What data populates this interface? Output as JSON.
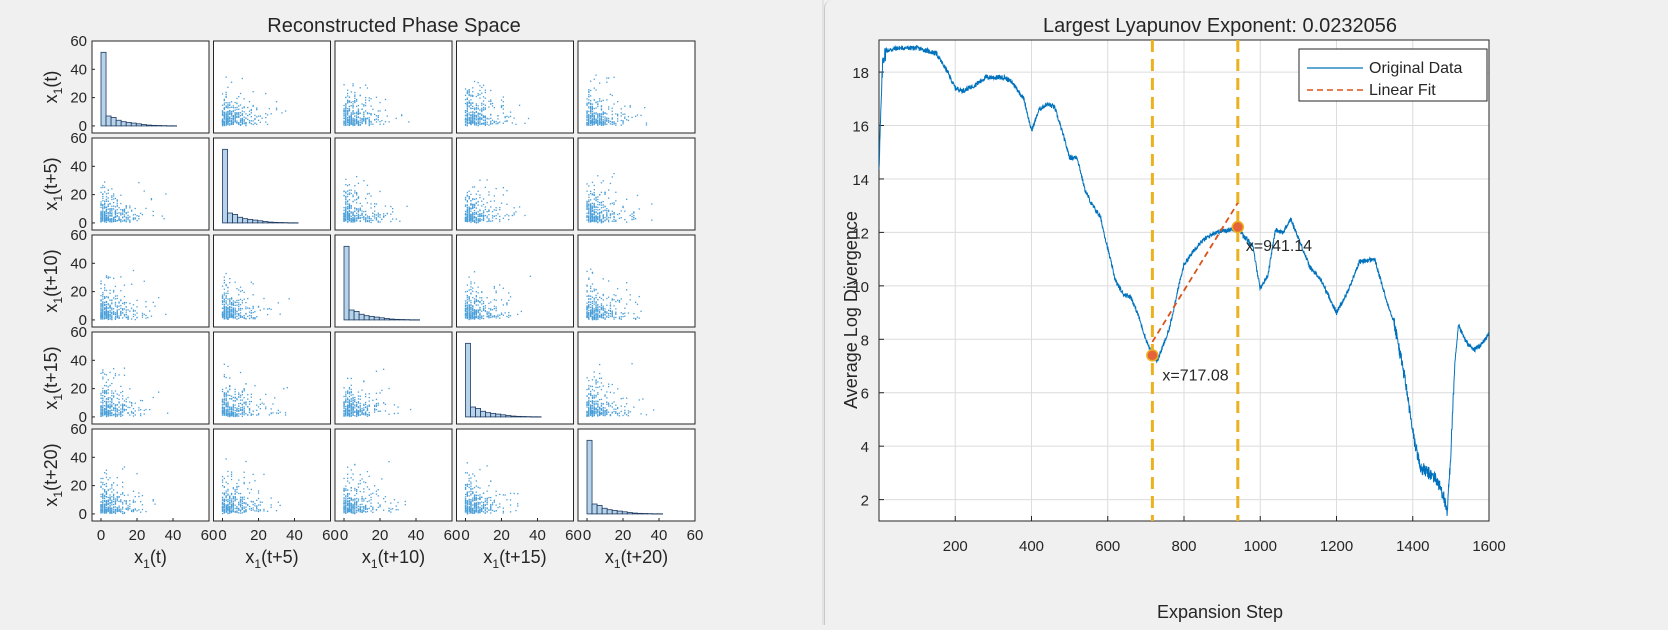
{
  "colors": {
    "series": "#0072bd",
    "fit": "#d95319",
    "vline": "#edb120",
    "marker": "#e5623a",
    "scatter": "#4a9fd8"
  },
  "chart_data": [
    {
      "type": "scatter",
      "title": "Reconstructed Phase Space",
      "variables": [
        "x1(t)",
        "x1(t+5)",
        "x1(t+10)",
        "x1(t+15)",
        "x1(t+20)"
      ],
      "xlabels": [
        "x",
        "x",
        "x",
        "x",
        "x"
      ],
      "xlabel_subscripts": [
        "1",
        "1",
        "1",
        "1",
        "1"
      ],
      "xlabel_suffixes": [
        "(t)",
        "(t+5)",
        "(t+10)",
        "(t+15)",
        "(t+20)"
      ],
      "xlim": [
        -5,
        60
      ],
      "ylim": [
        -5,
        60
      ],
      "xticks": [
        "0",
        "20",
        "40",
        "60"
      ],
      "yticks": [
        "0",
        "20",
        "40",
        "60"
      ],
      "diagonal": "histogram",
      "histogram_counts": [
        52,
        7,
        6,
        4,
        3,
        2.5,
        2,
        1.5,
        1,
        0.6,
        0.4,
        0.3,
        0.2,
        0.1,
        0.1
      ]
    },
    {
      "type": "line",
      "title": "Largest Lyapunov Exponent: 0.0232056",
      "xlabel": "Expansion Step",
      "ylabel": "Average Log Divergence",
      "xlim": [
        0,
        1600
      ],
      "ylim": [
        1.2,
        19.2
      ],
      "xticks": [
        "200",
        "400",
        "600",
        "800",
        "1000",
        "1200",
        "1400",
        "1600"
      ],
      "yticks": [
        "2",
        "4",
        "6",
        "8",
        "10",
        "12",
        "14",
        "16",
        "18"
      ],
      "grid": true,
      "legend": {
        "position": "top-right",
        "entries": [
          "Original Data",
          "Linear Fit"
        ]
      },
      "series": [
        {
          "name": "Original Data",
          "x": [
            0,
            10,
            20,
            50,
            100,
            150,
            180,
            200,
            220,
            250,
            280,
            300,
            330,
            350,
            380,
            400,
            420,
            440,
            460,
            480,
            500,
            520,
            540,
            560,
            580,
            600,
            620,
            640,
            660,
            680,
            700,
            717,
            730,
            760,
            780,
            800,
            840,
            880,
            920,
            941,
            960,
            980,
            1000,
            1020,
            1040,
            1060,
            1080,
            1100,
            1130,
            1160,
            1200,
            1230,
            1260,
            1300,
            1330,
            1350,
            1380,
            1400,
            1420,
            1440,
            1460,
            1480,
            1490,
            1500,
            1510,
            1520,
            1540,
            1560,
            1580,
            1600
          ],
          "y": [
            14.5,
            18.5,
            18.8,
            18.9,
            18.9,
            18.7,
            18.0,
            17.4,
            17.3,
            17.5,
            17.8,
            17.8,
            17.8,
            17.6,
            17.0,
            15.8,
            16.6,
            16.8,
            16.7,
            15.8,
            14.8,
            14.8,
            13.6,
            13.0,
            12.6,
            11.4,
            10.2,
            9.7,
            9.6,
            8.9,
            8.0,
            7.4,
            7.2,
            8.3,
            9.6,
            10.8,
            11.6,
            12.0,
            12.1,
            12.2,
            11.8,
            11.5,
            9.9,
            10.4,
            12.1,
            12.0,
            12.5,
            11.8,
            10.7,
            10.2,
            9.0,
            9.8,
            10.9,
            11.0,
            9.5,
            8.7,
            6.5,
            4.5,
            3.2,
            3.0,
            2.8,
            2.2,
            1.4,
            3.8,
            7.0,
            8.5,
            7.9,
            7.6,
            7.8,
            8.2
          ]
        },
        {
          "name": "Linear Fit",
          "x": [
            717,
            941
          ],
          "y": [
            7.9,
            13.1
          ]
        }
      ],
      "vlines": [
        717.08,
        941.14
      ],
      "markers": [
        {
          "x": 717.08,
          "y": 7.4
        },
        {
          "x": 941.14,
          "y": 12.2
        }
      ],
      "annotations": [
        "x=717.08",
        "x=941.14"
      ]
    }
  ]
}
